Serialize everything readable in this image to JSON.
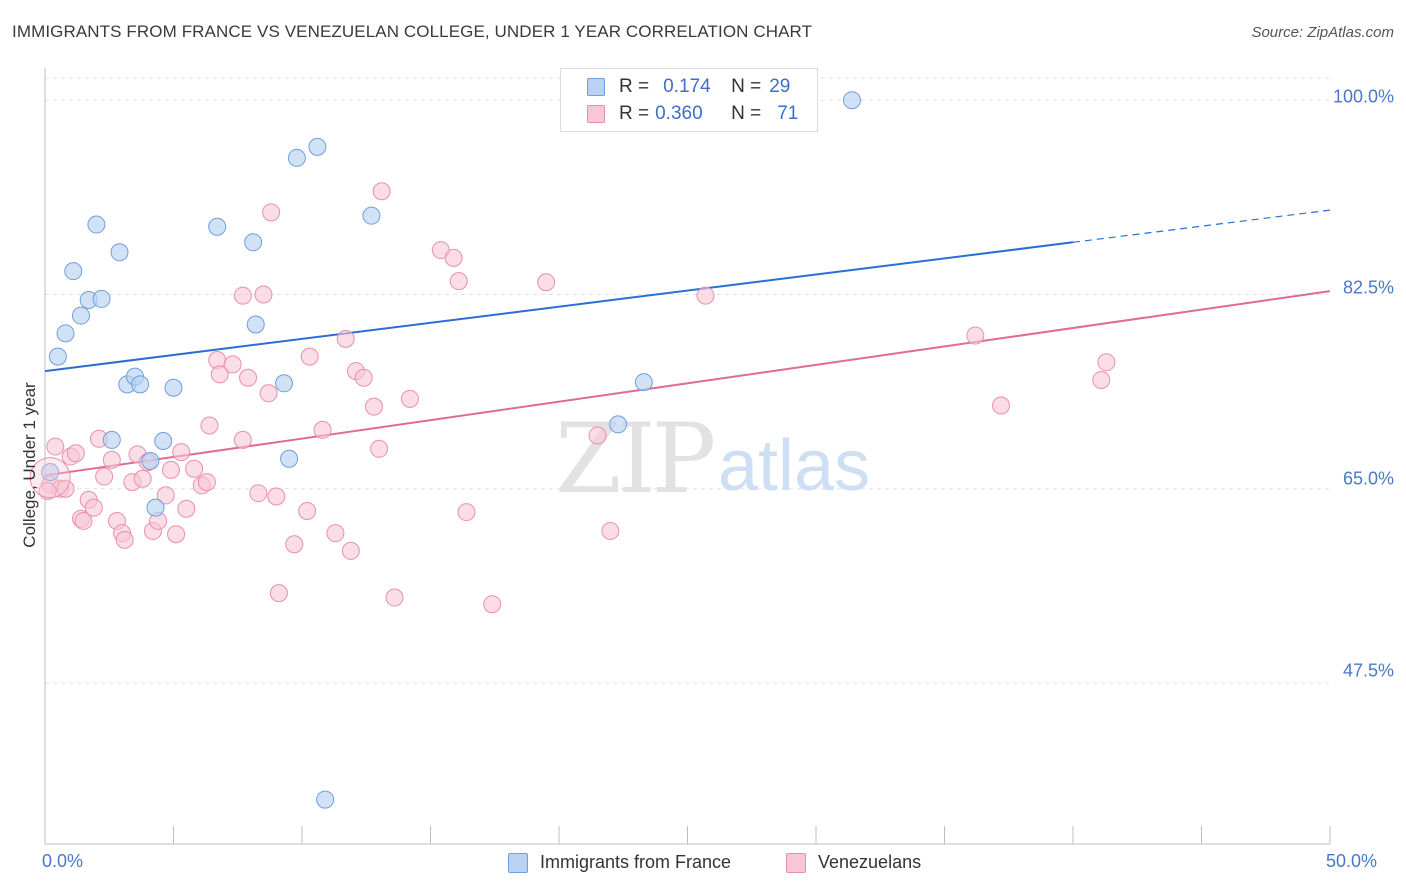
{
  "title": "IMMIGRANTS FROM FRANCE VS VENEZUELAN COLLEGE, UNDER 1 YEAR CORRELATION CHART",
  "source": "Source: ZipAtlas.com",
  "watermark": {
    "zip": "ZIP",
    "atlas": "atlas"
  },
  "colors": {
    "blue_fill": "#b9d2f2",
    "blue_stroke": "#6f9fdc",
    "blue_line": "#2a6fd0",
    "pink_fill": "#f8c6d6",
    "pink_stroke": "#e98fae",
    "pink_line": "#e06b98",
    "grid": "#e0e0e0",
    "axis_text": "#4a78c8"
  },
  "legend": {
    "r_label": "R =",
    "n_label": "N =",
    "series1": {
      "r": "0.174",
      "n": "29"
    },
    "series2": {
      "r": "0.360",
      "n": "71"
    }
  },
  "bottom_legend": {
    "series1": "Immigrants from France",
    "series2": "Venezuelans"
  },
  "chart_data": {
    "type": "scatter",
    "title": "IMMIGRANTS FROM FRANCE VS VENEZUELAN COLLEGE, UNDER 1 YEAR CORRELATION CHART",
    "xlabel": "",
    "ylabel": "College, Under 1 year",
    "xlim": [
      0,
      50
    ],
    "ylim": [
      33,
      102
    ],
    "x_tick_labels": [
      "0.0%",
      "50.0%"
    ],
    "y_ticks": [
      47.5,
      65.0,
      82.5,
      100.0
    ],
    "y_tick_labels": [
      "47.5%",
      "65.0%",
      "82.5%",
      "100.0%"
    ],
    "grid": true,
    "legend_position": "top-center",
    "series": [
      {
        "name": "Immigrants from France",
        "r": 0.174,
        "n": 29,
        "trend": {
          "x0": 0,
          "y0": 75.6,
          "x1": 40,
          "y1": 87.2,
          "dashed_to_x": 50,
          "dashed_to_y": 90.1
        },
        "points": [
          [
            0.2,
            66.5
          ],
          [
            0.5,
            76.9
          ],
          [
            0.8,
            79.0
          ],
          [
            1.1,
            84.6
          ],
          [
            1.4,
            80.6
          ],
          [
            1.7,
            82.0
          ],
          [
            2.0,
            88.8
          ],
          [
            2.2,
            82.1
          ],
          [
            2.6,
            69.4
          ],
          [
            2.9,
            86.3
          ],
          [
            3.2,
            74.4
          ],
          [
            3.5,
            75.1
          ],
          [
            3.7,
            74.4
          ],
          [
            4.1,
            67.5
          ],
          [
            4.3,
            63.3
          ],
          [
            4.6,
            69.3
          ],
          [
            5.0,
            74.1
          ],
          [
            6.7,
            88.6
          ],
          [
            8.1,
            87.2
          ],
          [
            8.2,
            79.8
          ],
          [
            9.3,
            74.5
          ],
          [
            9.5,
            67.7
          ],
          [
            9.8,
            94.8
          ],
          [
            10.6,
            95.8
          ],
          [
            10.9,
            37.0
          ],
          [
            12.7,
            89.6
          ],
          [
            22.3,
            70.8
          ],
          [
            23.3,
            74.6
          ],
          [
            31.4,
            100.0
          ]
        ]
      },
      {
        "name": "Venezuelans",
        "r": 0.36,
        "n": 71,
        "trend": {
          "x0": 0,
          "y0": 66.2,
          "x1": 50,
          "y1": 82.8
        },
        "points": [
          [
            0.2,
            65.4
          ],
          [
            0.4,
            68.8
          ],
          [
            0.6,
            65.0
          ],
          [
            0.8,
            65.0
          ],
          [
            1.0,
            67.9
          ],
          [
            1.2,
            68.2
          ],
          [
            1.4,
            62.3
          ],
          [
            1.5,
            62.1
          ],
          [
            1.7,
            64.0
          ],
          [
            1.9,
            63.3
          ],
          [
            2.1,
            69.5
          ],
          [
            2.3,
            66.1
          ],
          [
            2.6,
            67.6
          ],
          [
            2.8,
            62.1
          ],
          [
            3.0,
            61.0
          ],
          [
            3.1,
            60.4
          ],
          [
            3.4,
            65.6
          ],
          [
            3.6,
            68.1
          ],
          [
            3.8,
            65.9
          ],
          [
            4.0,
            67.4
          ],
          [
            4.2,
            61.2
          ],
          [
            4.4,
            62.1
          ],
          [
            4.7,
            64.4
          ],
          [
            4.9,
            66.7
          ],
          [
            5.1,
            60.9
          ],
          [
            5.3,
            68.3
          ],
          [
            5.5,
            63.2
          ],
          [
            5.8,
            66.8
          ],
          [
            6.1,
            65.3
          ],
          [
            6.3,
            65.6
          ],
          [
            6.4,
            70.7
          ],
          [
            6.7,
            76.6
          ],
          [
            6.8,
            75.3
          ],
          [
            7.3,
            76.2
          ],
          [
            7.7,
            69.4
          ],
          [
            7.7,
            82.4
          ],
          [
            7.9,
            75.0
          ],
          [
            8.3,
            64.6
          ],
          [
            8.5,
            82.5
          ],
          [
            8.7,
            73.6
          ],
          [
            8.8,
            89.9
          ],
          [
            9.0,
            64.3
          ],
          [
            9.1,
            55.6
          ],
          [
            9.7,
            60.0
          ],
          [
            10.2,
            63.0
          ],
          [
            10.3,
            76.9
          ],
          [
            10.8,
            70.3
          ],
          [
            11.3,
            61.0
          ],
          [
            11.7,
            78.5
          ],
          [
            11.9,
            59.4
          ],
          [
            12.1,
            75.6
          ],
          [
            12.4,
            75.0
          ],
          [
            12.8,
            72.4
          ],
          [
            13.0,
            68.6
          ],
          [
            13.1,
            91.8
          ],
          [
            13.6,
            55.2
          ],
          [
            14.2,
            73.1
          ],
          [
            15.4,
            86.5
          ],
          [
            15.9,
            85.8
          ],
          [
            16.1,
            83.7
          ],
          [
            16.4,
            62.9
          ],
          [
            17.4,
            54.6
          ],
          [
            19.5,
            83.6
          ],
          [
            21.5,
            69.8
          ],
          [
            22.0,
            61.2
          ],
          [
            25.7,
            82.4
          ],
          [
            36.2,
            78.8
          ],
          [
            37.2,
            72.5
          ],
          [
            41.1,
            74.8
          ],
          [
            41.3,
            76.4
          ],
          [
            0.1,
            64.8
          ]
        ]
      }
    ]
  }
}
